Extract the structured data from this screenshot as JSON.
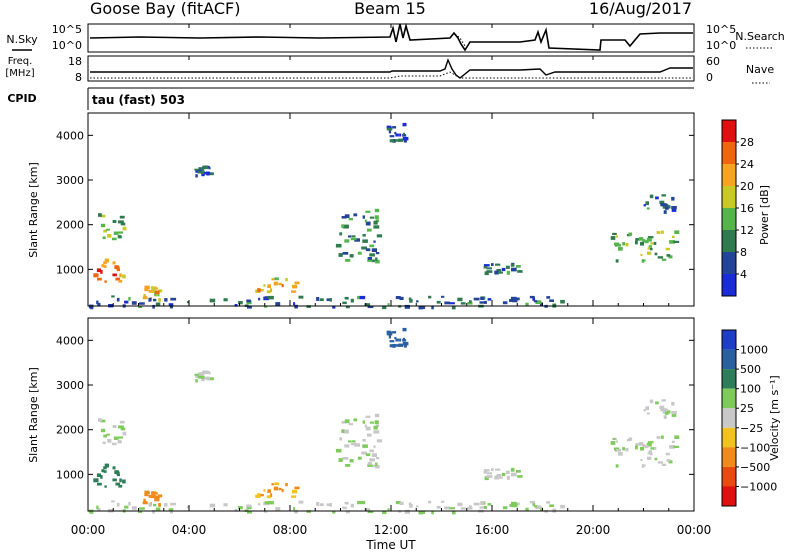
{
  "header": {
    "site": "Goose Bay (fitACF)",
    "beam": "Beam 15",
    "date": "16/Aug/2017"
  },
  "noise_panel": {
    "left_label": "N.Sky",
    "right_label": "N.Search",
    "left_ticks": [
      "10^5",
      "10^0"
    ],
    "right_ticks": [
      "10^5",
      "10^0"
    ]
  },
  "freq_panel": {
    "left_label_line1": "Freq.",
    "left_label_line2": "[MHz]",
    "right_label": "Nave",
    "left_ticks": [
      "18",
      "8"
    ],
    "right_ticks": [
      "60",
      "0"
    ]
  },
  "cpid": {
    "label": "CPID",
    "value": "tau (fast) 503"
  },
  "power_panel": {
    "ylabel": "Slant Range [km]",
    "yticks": [
      "4000",
      "3000",
      "2000",
      "1000"
    ],
    "colorbar_label": "Power [dB]",
    "colorbar_ticks": [
      "28",
      "24",
      "20",
      "16",
      "12",
      "8",
      "4"
    ],
    "colors": [
      "#1a2bd8",
      "#24449a",
      "#2f7a4e",
      "#54b54a",
      "#c9c926",
      "#f4a420",
      "#f0650f",
      "#e01010"
    ]
  },
  "velocity_panel": {
    "ylabel": "Slant Range [km]",
    "yticks": [
      "4000",
      "3000",
      "2000",
      "1000"
    ],
    "colorbar_label": "Velocity [m s⁻¹]",
    "colorbar_ticks": [
      "1000",
      "500",
      "100",
      "25",
      "−25",
      "−100",
      "−500",
      "−1000"
    ],
    "colors": [
      "#1e3ec8",
      "#2a5fa0",
      "#2e7d5a",
      "#7ecb5c",
      "#c8c8c8",
      "#f2c21e",
      "#f08a1a",
      "#ea4a12",
      "#e01010"
    ]
  },
  "xaxis": {
    "label": "Time UT",
    "ticks": [
      "00:00",
      "04:00",
      "08:00",
      "12:00",
      "16:00",
      "20:00",
      "00:00"
    ]
  },
  "chart_data": {
    "type": "heatmap",
    "title": "Goose Bay (fitACF) Beam 15 16/Aug/2017",
    "xlabel": "Time UT",
    "ylabel": "Slant Range [km]",
    "xlim": [
      0,
      24
    ],
    "ylim": [
      180,
      4500
    ],
    "x_units": "hours UT",
    "power_clim": [
      0,
      32
    ],
    "velocity_clim": [
      -1200,
      1200
    ],
    "scatter_regions": [
      {
        "t0": 0.3,
        "t1": 1.4,
        "r0": 1650,
        "r1": 2300,
        "power": 14,
        "velocity": 20
      },
      {
        "t0": 0.2,
        "t1": 1.5,
        "r0": 750,
        "r1": 1250,
        "power": 24,
        "velocity": 150
      },
      {
        "t0": 2.0,
        "t1": 2.8,
        "r0": 350,
        "r1": 650,
        "power": 20,
        "velocity": -200
      },
      {
        "t0": 6.6,
        "t1": 8.2,
        "r0": 500,
        "r1": 850,
        "power": 20,
        "velocity": -100
      },
      {
        "t0": 9.8,
        "t1": 11.5,
        "r0": 1200,
        "r1": 2400,
        "power": 10,
        "velocity": 20
      },
      {
        "t0": 20.6,
        "t1": 23.3,
        "r0": 1200,
        "r1": 1900,
        "power": 14,
        "velocity": 20
      },
      {
        "t0": 22.0,
        "t1": 23.2,
        "r0": 2200,
        "r1": 2700,
        "power": 8,
        "velocity": 20
      },
      {
        "t0": 4.2,
        "t1": 4.8,
        "r0": 3100,
        "r1": 3350,
        "power": 6,
        "velocity": 20
      },
      {
        "t0": 11.8,
        "t1": 12.6,
        "r0": 3900,
        "r1": 4300,
        "power": 6,
        "velocity": 600
      },
      {
        "t0": 15.5,
        "t1": 17.0,
        "r0": 950,
        "r1": 1150,
        "power": 8,
        "velocity": 20
      },
      {
        "t0": 0.0,
        "t1": 18.8,
        "r0": 180,
        "r1": 420,
        "power": 8,
        "velocity": 20
      }
    ]
  }
}
